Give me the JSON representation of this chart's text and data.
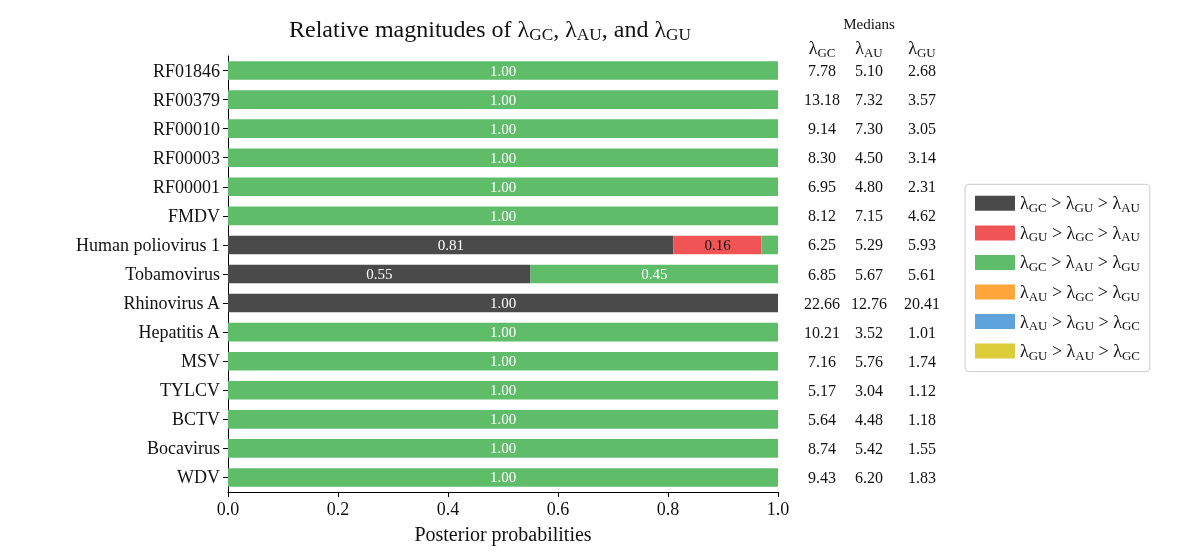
{
  "chart_data": {
    "type": "bar",
    "orientation": "horizontal",
    "stacked": true,
    "title": "Relative magnitudes of λ$_{GC}$, λ$_{AU}$, and λ$_{GU}$",
    "xlabel": "Posterior probabilities",
    "categories": [
      "RF01846",
      "RF00379",
      "RF00010",
      "RF00003",
      "RF00001",
      "FMDV",
      "Human poliovirus 1",
      "Tobamovirus",
      "Rhinovirus A",
      "Hepatitis A",
      "MSV",
      "TYLCV",
      "BCTV",
      "Bocavirus",
      "WDV"
    ],
    "series": [
      {
        "name": "λ$_{GC}$ > λ$_{GU}$ > λ$_{AU}$",
        "color": "#4a4a4a",
        "values": [
          0,
          0,
          0,
          0,
          0,
          0,
          0.81,
          0.55,
          1,
          0,
          0,
          0,
          0,
          0,
          0
        ],
        "value_labels": [
          null,
          null,
          null,
          null,
          null,
          null,
          "0.81",
          "0.55",
          "1.00",
          null,
          null,
          null,
          null,
          null,
          null
        ]
      },
      {
        "name": "λ$_{GU}$ > λ$_{GC}$ > λ$_{AU}$",
        "color": "#f05454",
        "values": [
          0,
          0,
          0,
          0,
          0,
          0,
          0.16,
          0,
          0,
          0,
          0,
          0,
          0,
          0,
          0
        ],
        "value_labels": [
          null,
          null,
          null,
          null,
          null,
          null,
          "0.16",
          null,
          null,
          null,
          null,
          null,
          null,
          null,
          null
        ]
      },
      {
        "name": "λ$_{GC}$ > λ$_{AU}$ > λ$_{GU}$",
        "color": "#5fbd6a",
        "values": [
          1,
          1,
          1,
          1,
          1,
          1,
          0.03,
          0.45,
          0,
          1,
          1,
          1,
          1,
          1,
          1
        ],
        "value_labels": [
          "1.00",
          "1.00",
          "1.00",
          "1.00",
          "1.00",
          "1.00",
          null,
          "0.45",
          null,
          "1.00",
          "1.00",
          "1.00",
          "1.00",
          "1.00",
          "1.00"
        ]
      },
      {
        "name": "λ$_{AU}$ > λ$_{GC}$ > λ$_{GU}$",
        "color": "#ffa53a",
        "values": [
          0,
          0,
          0,
          0,
          0,
          0,
          0,
          0,
          0,
          0,
          0,
          0,
          0,
          0,
          0
        ]
      },
      {
        "name": "λ$_{AU}$ > λ$_{GU}$ > λ$_{GC}$",
        "color": "#5fa3dc",
        "values": [
          0,
          0,
          0,
          0,
          0,
          0,
          0,
          0,
          0,
          0,
          0,
          0,
          0,
          0,
          0
        ]
      },
      {
        "name": "λ$_{GU}$ > λ$_{AU}$ > λ$_{GC}$",
        "color": "#dccc3a",
        "values": [
          0,
          0,
          0,
          0,
          0,
          0,
          0,
          0,
          0,
          0,
          0,
          0,
          0,
          0,
          0
        ]
      }
    ],
    "xlim": [
      0,
      1
    ],
    "xticks": [
      {
        "value": 0,
        "label": "0.0"
      },
      0.2,
      0.4,
      0.6,
      0.8,
      {
        "value": 1,
        "label": "1.0"
      }
    ],
    "grid": false,
    "legend": "right",
    "annotations": [
      "Medians",
      "λ$_{GC}$",
      "λ$_{AU}$",
      "λ$_{GU}$",
      "7.78",
      "5.10",
      "2.68",
      "13.18",
      "7.32",
      "3.57",
      "9.14",
      "7.30",
      "3.05",
      "8.30",
      "4.50",
      "3.14",
      "6.95",
      "4.80",
      "2.31",
      "8.12",
      "7.15",
      "4.62",
      "6.25",
      "5.29",
      "5.93",
      "6.85",
      "5.67",
      "5.61",
      "22.66",
      "12.76",
      "20.41",
      "10.21",
      "3.52",
      "1.01",
      "7.16",
      "5.76",
      "1.74",
      "5.17",
      "3.04",
      "1.12",
      "5.64",
      "4.48",
      "1.18",
      "8.74",
      "5.42",
      "1.55",
      "9.43",
      "6.20",
      "1.83"
    ]
  }
}
